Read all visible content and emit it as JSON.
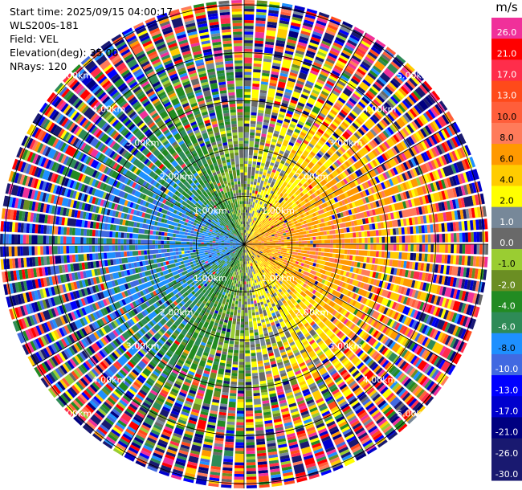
{
  "info": {
    "start_time": "Start time: 2025/09/15 04:00:17",
    "instrument": "WLS200s-181",
    "field": "Field: VEL",
    "elevation": "Elevation(deg): 35.00",
    "nrays": "NRays: 120"
  },
  "colorbar": {
    "title": "m/s",
    "bins": [
      {
        "label": "26.0",
        "color": "#f0309a"
      },
      {
        "label": "21.0",
        "color": "#ff0000"
      },
      {
        "label": "17.0",
        "color": "#ff2d4b"
      },
      {
        "label": "13.0",
        "color": "#ff4a1a"
      },
      {
        "label": "10.0",
        "color": "#ff5e3a"
      },
      {
        "label": "8.0",
        "color": "#ff7b5a"
      },
      {
        "label": "6.0",
        "color": "#ff9900"
      },
      {
        "label": "4.0",
        "color": "#ffcc00"
      },
      {
        "label": "2.0",
        "color": "#ffff00"
      },
      {
        "label": "1.0",
        "color": "#778899"
      },
      {
        "label": "0.0",
        "color": "#696969"
      },
      {
        "label": "-1.0",
        "color": "#9acd32"
      },
      {
        "label": "-2.0",
        "color": "#6b8e23"
      },
      {
        "label": "-4.0",
        "color": "#228b22"
      },
      {
        "label": "-6.0",
        "color": "#2e8b57"
      },
      {
        "label": "-8.0",
        "color": "#1e90ff"
      },
      {
        "label": "-10.0",
        "color": "#4169e1"
      },
      {
        "label": "-13.0",
        "color": "#0000ff"
      },
      {
        "label": "-17.0",
        "color": "#0000cd"
      },
      {
        "label": "-21.0",
        "color": "#000080"
      },
      {
        "label": "-26.0",
        "color": "#191970"
      },
      {
        "label": "-30.0",
        "color": "#191970"
      }
    ]
  },
  "chart_data": {
    "type": "heatmap",
    "projection": "polar-ppi",
    "field": "VEL",
    "units": "m/s",
    "nrays": 120,
    "range_rings_km": [
      1,
      2,
      3,
      4,
      5
    ],
    "ring_labels": [
      "1.00km",
      "2.00km",
      "3.00km",
      "4.00km",
      "5.00km"
    ],
    "max_range_km": 5.1,
    "azimuth_lines_deg": [
      0,
      30,
      60,
      90,
      120,
      150,
      180,
      210,
      240,
      270,
      300,
      330
    ],
    "velocity_pattern": {
      "west_sector_inner": "negative (-1 to -6 m/s)",
      "east_sector_inner": "positive (2 to 10 m/s)",
      "outer_ranges": "noisy, full color scale"
    }
  }
}
